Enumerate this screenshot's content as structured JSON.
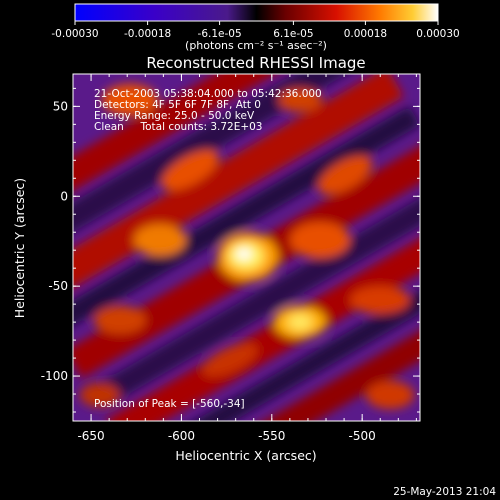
{
  "chart_data": {
    "type": "heatmap",
    "title": "Reconstructed RHESSI Image",
    "xlabel": "Heliocentric X (arcsec)",
    "ylabel": "Heliocentric Y (arcsec)",
    "xlim": [
      -660,
      -468
    ],
    "ylim": [
      -125,
      68
    ],
    "x_ticks": [
      -650,
      -600,
      -550,
      -500
    ],
    "x_tick_labels": [
      "-650",
      "-600",
      "-550",
      "-500"
    ],
    "y_ticks": [
      50,
      0,
      -50,
      -100
    ],
    "y_tick_labels": [
      "50",
      "0",
      "-50",
      "-100"
    ],
    "colorbar": {
      "range": [
        -0.0003,
        0.0003
      ],
      "ticks": [
        -0.0003,
        -0.00018,
        -6.1e-05,
        6.1e-05,
        0.00018,
        0.0003
      ],
      "tick_labels": [
        "-0.00030",
        "-0.00018",
        "-6.1e-05",
        "6.1e-05",
        "0.00018",
        "0.00030"
      ],
      "unit_label": "(photons cm⁻² s⁻¹ asec⁻²)"
    },
    "peak": [
      -560,
      -34
    ],
    "annotations": [
      "21-Oct-2003 05:38:04.000 to 05:42:36.000",
      "Detectors: 4F 5F 6F 7F 8F, Att 0",
      "Energy Range: 25.0 - 50.0 keV",
      "Clean     Total counts: 3.72E+03",
      "Position of Peak = [-560,-34]"
    ],
    "footer": "25-May-2013 21:04"
  }
}
